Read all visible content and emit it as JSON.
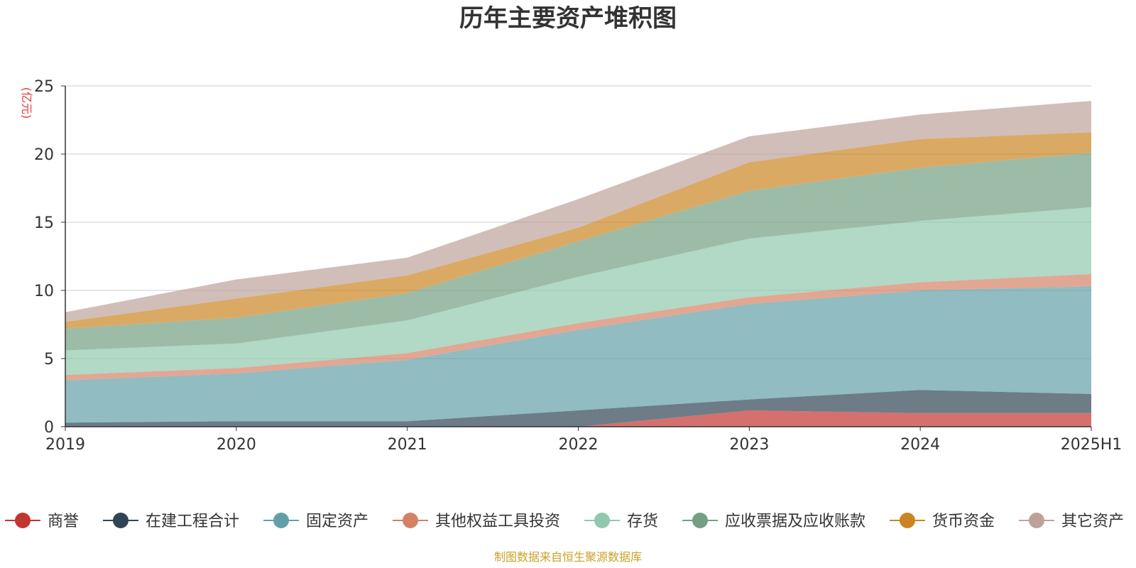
{
  "chart_data": {
    "type": "area",
    "stacked": true,
    "title": "历年主要资产堆积图",
    "ylabel": "(亿元)",
    "xlabel": "",
    "categories": [
      "2019",
      "2020",
      "2021",
      "2022",
      "2023",
      "2024",
      "2025H1"
    ],
    "ylim": [
      0,
      25
    ],
    "yticks": [
      0,
      5,
      10,
      15,
      20,
      25
    ],
    "grid": true,
    "legend_position": "bottom",
    "series": [
      {
        "name": "商誉",
        "color": "#c23531",
        "values": [
          0,
          0,
          0,
          0,
          1.2,
          1.0,
          1.0
        ]
      },
      {
        "name": "在建工程合计",
        "color": "#2f4554",
        "values": [
          0.3,
          0.4,
          0.4,
          1.2,
          0.8,
          1.7,
          1.4
        ]
      },
      {
        "name": "固定资产",
        "color": "#61a0a8",
        "values": [
          3.1,
          3.5,
          4.5,
          5.9,
          7.0,
          7.3,
          7.9
        ]
      },
      {
        "name": "其他权益工具投资",
        "color": "#d48265",
        "values": [
          0.4,
          0.4,
          0.5,
          0.5,
          0.5,
          0.6,
          0.9
        ]
      },
      {
        "name": "存货",
        "color": "#91c7ae",
        "values": [
          1.8,
          1.8,
          2.4,
          3.4,
          4.3,
          4.5,
          4.9
        ]
      },
      {
        "name": "应收票据及应收账款",
        "color": "#749f83",
        "values": [
          1.6,
          1.9,
          2.0,
          2.6,
          3.5,
          3.9,
          4.0
        ]
      },
      {
        "name": "货币资金",
        "color": "#ca8622",
        "values": [
          0.5,
          1.4,
          1.3,
          1.0,
          2.1,
          2.1,
          1.5
        ]
      },
      {
        "name": "其它资产",
        "color": "#bda29a",
        "values": [
          0.7,
          1.4,
          1.3,
          2.1,
          1.9,
          1.8,
          2.3
        ]
      }
    ],
    "source": "制图数据来自恒生聚源数据库"
  }
}
